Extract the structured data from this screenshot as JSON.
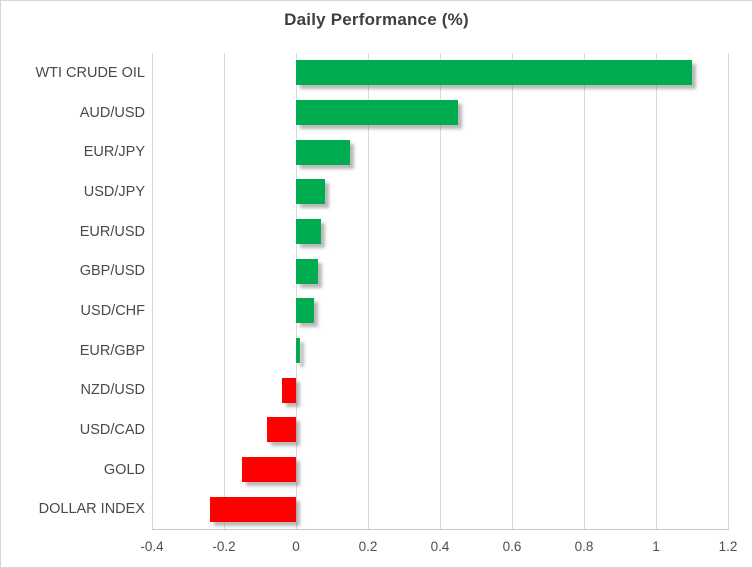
{
  "chart_data": {
    "type": "bar",
    "orientation": "horizontal",
    "title": "Daily Performance (%)",
    "categories": [
      "WTI CRUDE OIL",
      "AUD/USD",
      "EUR/JPY",
      "USD/JPY",
      "EUR/USD",
      "GBP/USD",
      "USD/CHF",
      "EUR/GBP",
      "NZD/USD",
      "USD/CAD",
      "GOLD",
      "DOLLAR INDEX"
    ],
    "values": [
      1.1,
      0.45,
      0.15,
      0.08,
      0.07,
      0.06,
      0.05,
      0.01,
      -0.04,
      -0.08,
      -0.15,
      -0.24
    ],
    "xlim": [
      -0.4,
      1.2
    ],
    "xticks": [
      -0.4,
      -0.2,
      0,
      0.2,
      0.4,
      0.6,
      0.8,
      1,
      1.2
    ],
    "xtick_labels": [
      "-0.4",
      "-0.2",
      "0",
      "0.2",
      "0.4",
      "0.6",
      "0.8",
      "1",
      "1.2"
    ],
    "positive_color": "#00AC50",
    "negative_color": "#FF0000",
    "grid": true,
    "legend_position": "none",
    "xlabel": "",
    "ylabel": ""
  }
}
